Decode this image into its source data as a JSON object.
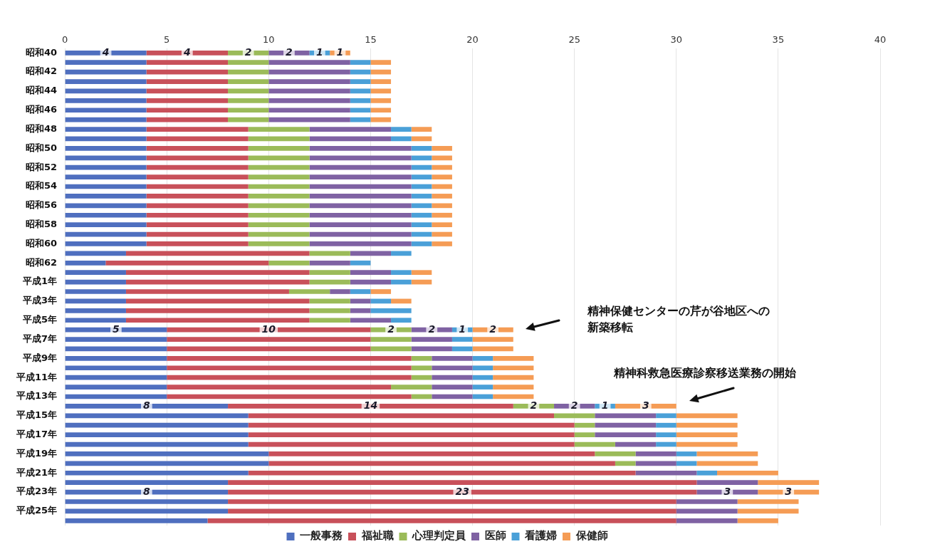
{
  "chart_data": {
    "type": "bar",
    "orientation": "horizontal",
    "stacked": true,
    "categories": [
      "昭和40",
      null,
      "昭和42",
      null,
      "昭和44",
      null,
      "昭和46",
      null,
      "昭和48",
      null,
      "昭和50",
      null,
      "昭和52",
      null,
      "昭和54",
      null,
      "昭和56",
      null,
      "昭和58",
      null,
      "昭和60",
      null,
      "昭和62",
      null,
      "平成1年",
      null,
      "平成3年",
      null,
      "平成5年",
      null,
      "平成7年",
      null,
      "平成9年",
      null,
      "平成11年",
      null,
      "平成13年",
      null,
      "平成15年",
      null,
      "平成17年",
      null,
      "平成19年",
      null,
      "平成21年",
      null,
      "平成23年",
      null,
      "平成25年",
      null
    ],
    "series": [
      {
        "name": "一般事務",
        "color": "#4f6fbf",
        "values": [
          4,
          4,
          4,
          4,
          4,
          4,
          4,
          4,
          4,
          4,
          4,
          4,
          4,
          4,
          4,
          4,
          4,
          4,
          4,
          4,
          4,
          3,
          2,
          3,
          3,
          3,
          3,
          3,
          3,
          5,
          5,
          5,
          5,
          5,
          5,
          5,
          5,
          8,
          9,
          9,
          9,
          9,
          10,
          10,
          9,
          8,
          8,
          8,
          8,
          7
        ],
        "value_labels": [
          "4",
          null,
          null,
          null,
          null,
          null,
          null,
          null,
          null,
          null,
          null,
          null,
          null,
          null,
          null,
          null,
          null,
          null,
          null,
          null,
          null,
          null,
          null,
          null,
          null,
          null,
          null,
          null,
          null,
          "5",
          null,
          null,
          null,
          null,
          null,
          null,
          null,
          "8",
          null,
          null,
          null,
          null,
          null,
          null,
          null,
          null,
          "8",
          null,
          null,
          null
        ]
      },
      {
        "name": "福祉職",
        "color": "#c8505a",
        "values": [
          4,
          4,
          4,
          4,
          4,
          4,
          4,
          4,
          5,
          5,
          5,
          5,
          5,
          5,
          5,
          5,
          5,
          5,
          5,
          5,
          5,
          9,
          8,
          9,
          9,
          8,
          9,
          9,
          9,
          10,
          10,
          10,
          12,
          12,
          12,
          11,
          12,
          14,
          15,
          16,
          16,
          16,
          16,
          17,
          19,
          23,
          23,
          22,
          22,
          23
        ],
        "value_labels": [
          "4",
          null,
          null,
          null,
          null,
          null,
          null,
          null,
          null,
          null,
          null,
          null,
          null,
          null,
          null,
          null,
          null,
          null,
          null,
          null,
          null,
          null,
          null,
          null,
          null,
          null,
          null,
          null,
          null,
          "10",
          null,
          null,
          null,
          null,
          null,
          null,
          null,
          "14",
          null,
          null,
          null,
          null,
          null,
          null,
          null,
          null,
          "23",
          null,
          null,
          null
        ]
      },
      {
        "name": "心理判定員",
        "color": "#9bbb59",
        "values": [
          2,
          2,
          2,
          2,
          2,
          2,
          2,
          2,
          3,
          3,
          3,
          3,
          3,
          3,
          3,
          3,
          3,
          3,
          3,
          3,
          3,
          2,
          2,
          2,
          2,
          2,
          2,
          2,
          2,
          2,
          2,
          2,
          1,
          1,
          1,
          2,
          1,
          2,
          2,
          1,
          1,
          2,
          2,
          1,
          0,
          0,
          0,
          0,
          0,
          0
        ],
        "value_labels": [
          "2",
          null,
          null,
          null,
          null,
          null,
          null,
          null,
          null,
          null,
          null,
          null,
          null,
          null,
          null,
          null,
          null,
          null,
          null,
          null,
          null,
          null,
          null,
          null,
          null,
          null,
          null,
          null,
          null,
          "2",
          null,
          null,
          null,
          null,
          null,
          null,
          null,
          "2",
          null,
          null,
          null,
          null,
          null,
          null,
          null,
          null,
          null,
          null,
          null,
          null
        ]
      },
      {
        "name": "医師",
        "color": "#7f62a3",
        "values": [
          2,
          4,
          4,
          4,
          4,
          4,
          4,
          4,
          4,
          4,
          5,
          5,
          5,
          5,
          5,
          5,
          5,
          5,
          5,
          5,
          5,
          2,
          2,
          2,
          2,
          1,
          1,
          1,
          2,
          2,
          2,
          2,
          2,
          2,
          2,
          2,
          2,
          2,
          3,
          3,
          3,
          2,
          2,
          2,
          3,
          3,
          3,
          3,
          3,
          3
        ],
        "value_labels": [
          "2",
          null,
          null,
          null,
          null,
          null,
          null,
          null,
          null,
          null,
          null,
          null,
          null,
          null,
          null,
          null,
          null,
          null,
          null,
          null,
          null,
          null,
          null,
          null,
          null,
          null,
          null,
          null,
          null,
          "2",
          null,
          null,
          null,
          null,
          null,
          null,
          null,
          "2",
          null,
          null,
          null,
          null,
          null,
          null,
          null,
          null,
          "3",
          null,
          null,
          null
        ]
      },
      {
        "name": "看護婦",
        "color": "#4aa0d8",
        "values": [
          1,
          1,
          1,
          1,
          1,
          1,
          1,
          1,
          1,
          1,
          1,
          1,
          1,
          1,
          1,
          1,
          1,
          1,
          1,
          1,
          1,
          1,
          1,
          1,
          1,
          1,
          1,
          2,
          1,
          1,
          1,
          1,
          1,
          1,
          1,
          1,
          1,
          1,
          1,
          1,
          1,
          1,
          1,
          1,
          1,
          0,
          0,
          0,
          0,
          0
        ],
        "value_labels": [
          "1",
          null,
          null,
          null,
          null,
          null,
          null,
          null,
          null,
          null,
          null,
          null,
          null,
          null,
          null,
          null,
          null,
          null,
          null,
          null,
          null,
          null,
          null,
          null,
          null,
          null,
          null,
          null,
          null,
          "1",
          null,
          null,
          null,
          null,
          null,
          null,
          null,
          "1",
          null,
          null,
          null,
          null,
          null,
          null,
          null,
          null,
          null,
          null,
          null,
          null
        ]
      },
      {
        "name": "保健師",
        "color": "#f59c55",
        "values": [
          1,
          1,
          1,
          1,
          1,
          1,
          1,
          1,
          1,
          1,
          1,
          1,
          1,
          1,
          1,
          1,
          1,
          1,
          1,
          1,
          1,
          0,
          0,
          1,
          1,
          1,
          1,
          0,
          0,
          2,
          2,
          2,
          2,
          2,
          2,
          2,
          2,
          3,
          3,
          3,
          3,
          3,
          3,
          3,
          3,
          3,
          3,
          3,
          3,
          2
        ],
        "value_labels": [
          "1",
          null,
          null,
          null,
          null,
          null,
          null,
          null,
          null,
          null,
          null,
          null,
          null,
          null,
          null,
          null,
          null,
          null,
          null,
          null,
          null,
          null,
          null,
          null,
          null,
          null,
          null,
          null,
          null,
          "2",
          null,
          null,
          null,
          null,
          null,
          null,
          null,
          "3",
          null,
          null,
          null,
          null,
          null,
          null,
          null,
          null,
          "3",
          null,
          null,
          null
        ]
      }
    ],
    "xlim": [
      0,
      40
    ],
    "xticks": [
      0,
      5,
      10,
      15,
      20,
      25,
      30,
      35,
      40
    ],
    "grid": "x",
    "legend": "bottom",
    "annotations": [
      "精神保健センターの芹が谷地区への新築移転",
      "精神科救急医療診察移送業務の開始"
    ]
  }
}
